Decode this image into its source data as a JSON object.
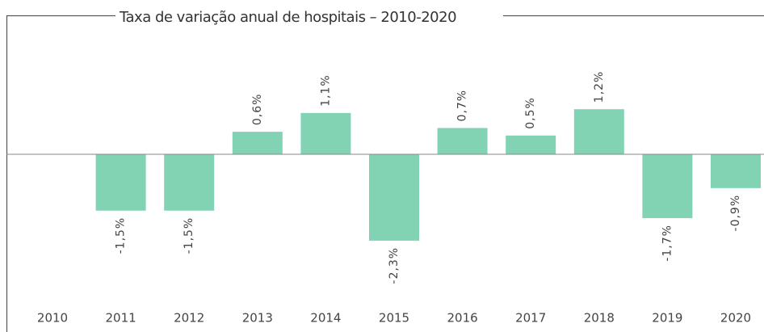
{
  "chart_data": {
    "type": "bar",
    "title": "Taxa de variação anual de hospitais – 2010-2020",
    "categories": [
      "2010",
      "2011",
      "2012",
      "2013",
      "2014",
      "2015",
      "2016",
      "2017",
      "2018",
      "2019",
      "2020"
    ],
    "values": [
      null,
      -1.5,
      -1.5,
      0.6,
      1.1,
      -2.3,
      0.7,
      0.5,
      1.2,
      -1.7,
      -0.9
    ],
    "value_labels": [
      null,
      "-1,5%",
      "-1,5%",
      "0,6%",
      "1,1%",
      "-2,3%",
      "0,7%",
      "0,5%",
      "1,2%",
      "-1,7%",
      "-0,9%"
    ],
    "color": "#82d3b3"
  }
}
